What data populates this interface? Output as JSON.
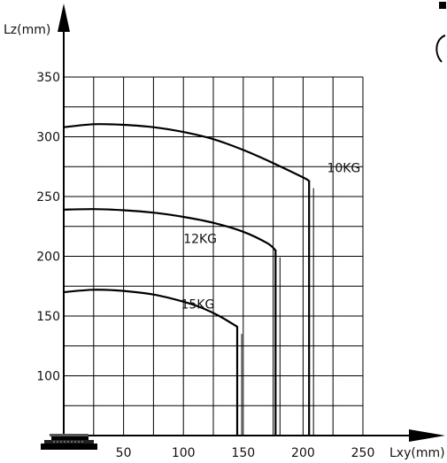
{
  "chart_data": {
    "type": "line",
    "xlabel": "Lxy(mm)",
    "ylabel": "Lz(mm)",
    "xlim": [
      0,
      250
    ],
    "ylim": [
      50,
      350
    ],
    "x_ticks": [
      50,
      100,
      150,
      200,
      250
    ],
    "y_ticks": [
      100,
      150,
      200,
      250,
      300,
      350
    ],
    "grid": true,
    "series": [
      {
        "name": "10KG",
        "points": [
          [
            0,
            308
          ],
          [
            25,
            310.5
          ],
          [
            50,
            310
          ],
          [
            75,
            308
          ],
          [
            100,
            304
          ],
          [
            125,
            298
          ],
          [
            150,
            289
          ],
          [
            175,
            278
          ],
          [
            200,
            266
          ],
          [
            205,
            263
          ],
          [
            205,
            50
          ]
        ]
      },
      {
        "name": "12KG",
        "points": [
          [
            0,
            239
          ],
          [
            25,
            239.5
          ],
          [
            50,
            238.5
          ],
          [
            75,
            236.5
          ],
          [
            100,
            233
          ],
          [
            125,
            228
          ],
          [
            150,
            220.5
          ],
          [
            170,
            211
          ],
          [
            177,
            205
          ],
          [
            177,
            50
          ]
        ]
      },
      {
        "name": "15KG",
        "points": [
          [
            0,
            170
          ],
          [
            25,
            172
          ],
          [
            50,
            171
          ],
          [
            75,
            168
          ],
          [
            100,
            162
          ],
          [
            115,
            157
          ],
          [
            130,
            150
          ],
          [
            145,
            141
          ],
          [
            145,
            50
          ]
        ]
      }
    ]
  }
}
